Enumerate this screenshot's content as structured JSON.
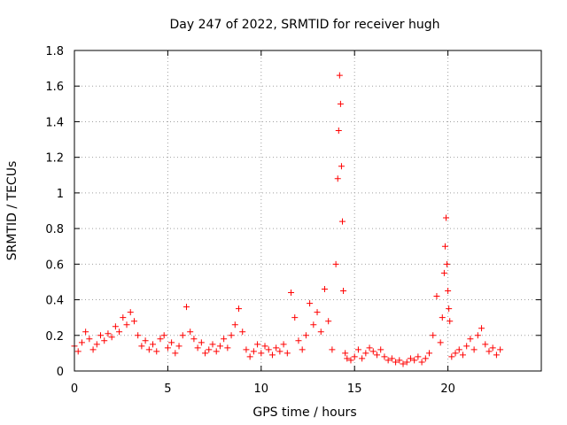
{
  "chart_data": {
    "type": "scatter",
    "title": "Day 247 of 2022, SRMTID for receiver hugh",
    "xlabel": "GPS time / hours",
    "ylabel": "SRMTID / TECUs",
    "xlim": [
      0,
      25
    ],
    "ylim": [
      0,
      1.8
    ],
    "xticks": [
      0,
      5,
      10,
      15,
      20
    ],
    "xtick_labels": [
      "0",
      "5",
      "10",
      "15",
      "20"
    ],
    "yticks": [
      0,
      0.2,
      0.4,
      0.6,
      0.8,
      1.0,
      1.2,
      1.4,
      1.6,
      1.8
    ],
    "ytick_labels": [
      "0",
      "0.2",
      "0.4",
      "0.6",
      "0.8",
      "1",
      "1.2",
      "1.4",
      "1.6",
      "1.8"
    ],
    "grid": true,
    "marker": "+",
    "color": "#ff0000",
    "series": [
      {
        "name": "SRMTID",
        "x": [
          0.0,
          0.2,
          0.4,
          0.6,
          0.8,
          1.0,
          1.2,
          1.4,
          1.6,
          1.8,
          2.0,
          2.2,
          2.4,
          2.6,
          2.8,
          3.0,
          3.2,
          3.4,
          3.6,
          3.8,
          4.0,
          4.2,
          4.4,
          4.6,
          4.8,
          5.0,
          5.2,
          5.4,
          5.6,
          5.8,
          6.0,
          6.2,
          6.4,
          6.6,
          6.8,
          7.0,
          7.2,
          7.4,
          7.6,
          7.8,
          8.0,
          8.2,
          8.4,
          8.6,
          8.8,
          9.0,
          9.2,
          9.4,
          9.6,
          9.8,
          10.0,
          10.2,
          10.4,
          10.6,
          10.8,
          11.0,
          11.2,
          11.4,
          11.6,
          11.8,
          12.0,
          12.2,
          12.4,
          12.6,
          12.8,
          13.0,
          13.2,
          13.4,
          13.6,
          13.8,
          14.0,
          14.1,
          14.15,
          14.2,
          14.25,
          14.3,
          14.35,
          14.4,
          14.5,
          14.6,
          14.8,
          15.0,
          15.2,
          15.4,
          15.6,
          15.8,
          16.0,
          16.2,
          16.4,
          16.6,
          16.8,
          17.0,
          17.2,
          17.4,
          17.6,
          17.8,
          18.0,
          18.2,
          18.4,
          18.6,
          18.8,
          19.0,
          19.2,
          19.4,
          19.6,
          19.7,
          19.8,
          19.85,
          19.9,
          19.95,
          20.0,
          20.05,
          20.1,
          20.2,
          20.4,
          20.6,
          20.8,
          21.0,
          21.2,
          21.4,
          21.6,
          21.8,
          22.0,
          22.2,
          22.4,
          22.6,
          22.8
        ],
        "y": [
          0.14,
          0.11,
          0.16,
          0.22,
          0.18,
          0.12,
          0.15,
          0.2,
          0.17,
          0.21,
          0.19,
          0.25,
          0.22,
          0.3,
          0.26,
          0.33,
          0.28,
          0.2,
          0.14,
          0.17,
          0.12,
          0.15,
          0.11,
          0.18,
          0.2,
          0.13,
          0.16,
          0.1,
          0.14,
          0.2,
          0.36,
          0.22,
          0.18,
          0.13,
          0.16,
          0.1,
          0.12,
          0.15,
          0.11,
          0.14,
          0.18,
          0.13,
          0.2,
          0.26,
          0.35,
          0.22,
          0.12,
          0.08,
          0.11,
          0.15,
          0.1,
          0.14,
          0.12,
          0.09,
          0.13,
          0.11,
          0.15,
          0.1,
          0.44,
          0.3,
          0.17,
          0.12,
          0.2,
          0.38,
          0.26,
          0.33,
          0.22,
          0.46,
          0.28,
          0.12,
          0.6,
          1.08,
          1.35,
          1.66,
          1.5,
          1.15,
          0.84,
          0.45,
          0.1,
          0.07,
          0.06,
          0.08,
          0.12,
          0.07,
          0.1,
          0.13,
          0.11,
          0.09,
          0.12,
          0.08,
          0.06,
          0.07,
          0.05,
          0.06,
          0.04,
          0.05,
          0.07,
          0.06,
          0.08,
          0.05,
          0.07,
          0.1,
          0.2,
          0.42,
          0.16,
          0.3,
          0.55,
          0.7,
          0.86,
          0.6,
          0.45,
          0.35,
          0.28,
          0.08,
          0.1,
          0.12,
          0.09,
          0.14,
          0.18,
          0.12,
          0.2,
          0.24,
          0.15,
          0.11,
          0.13,
          0.09,
          0.12
        ]
      }
    ]
  }
}
